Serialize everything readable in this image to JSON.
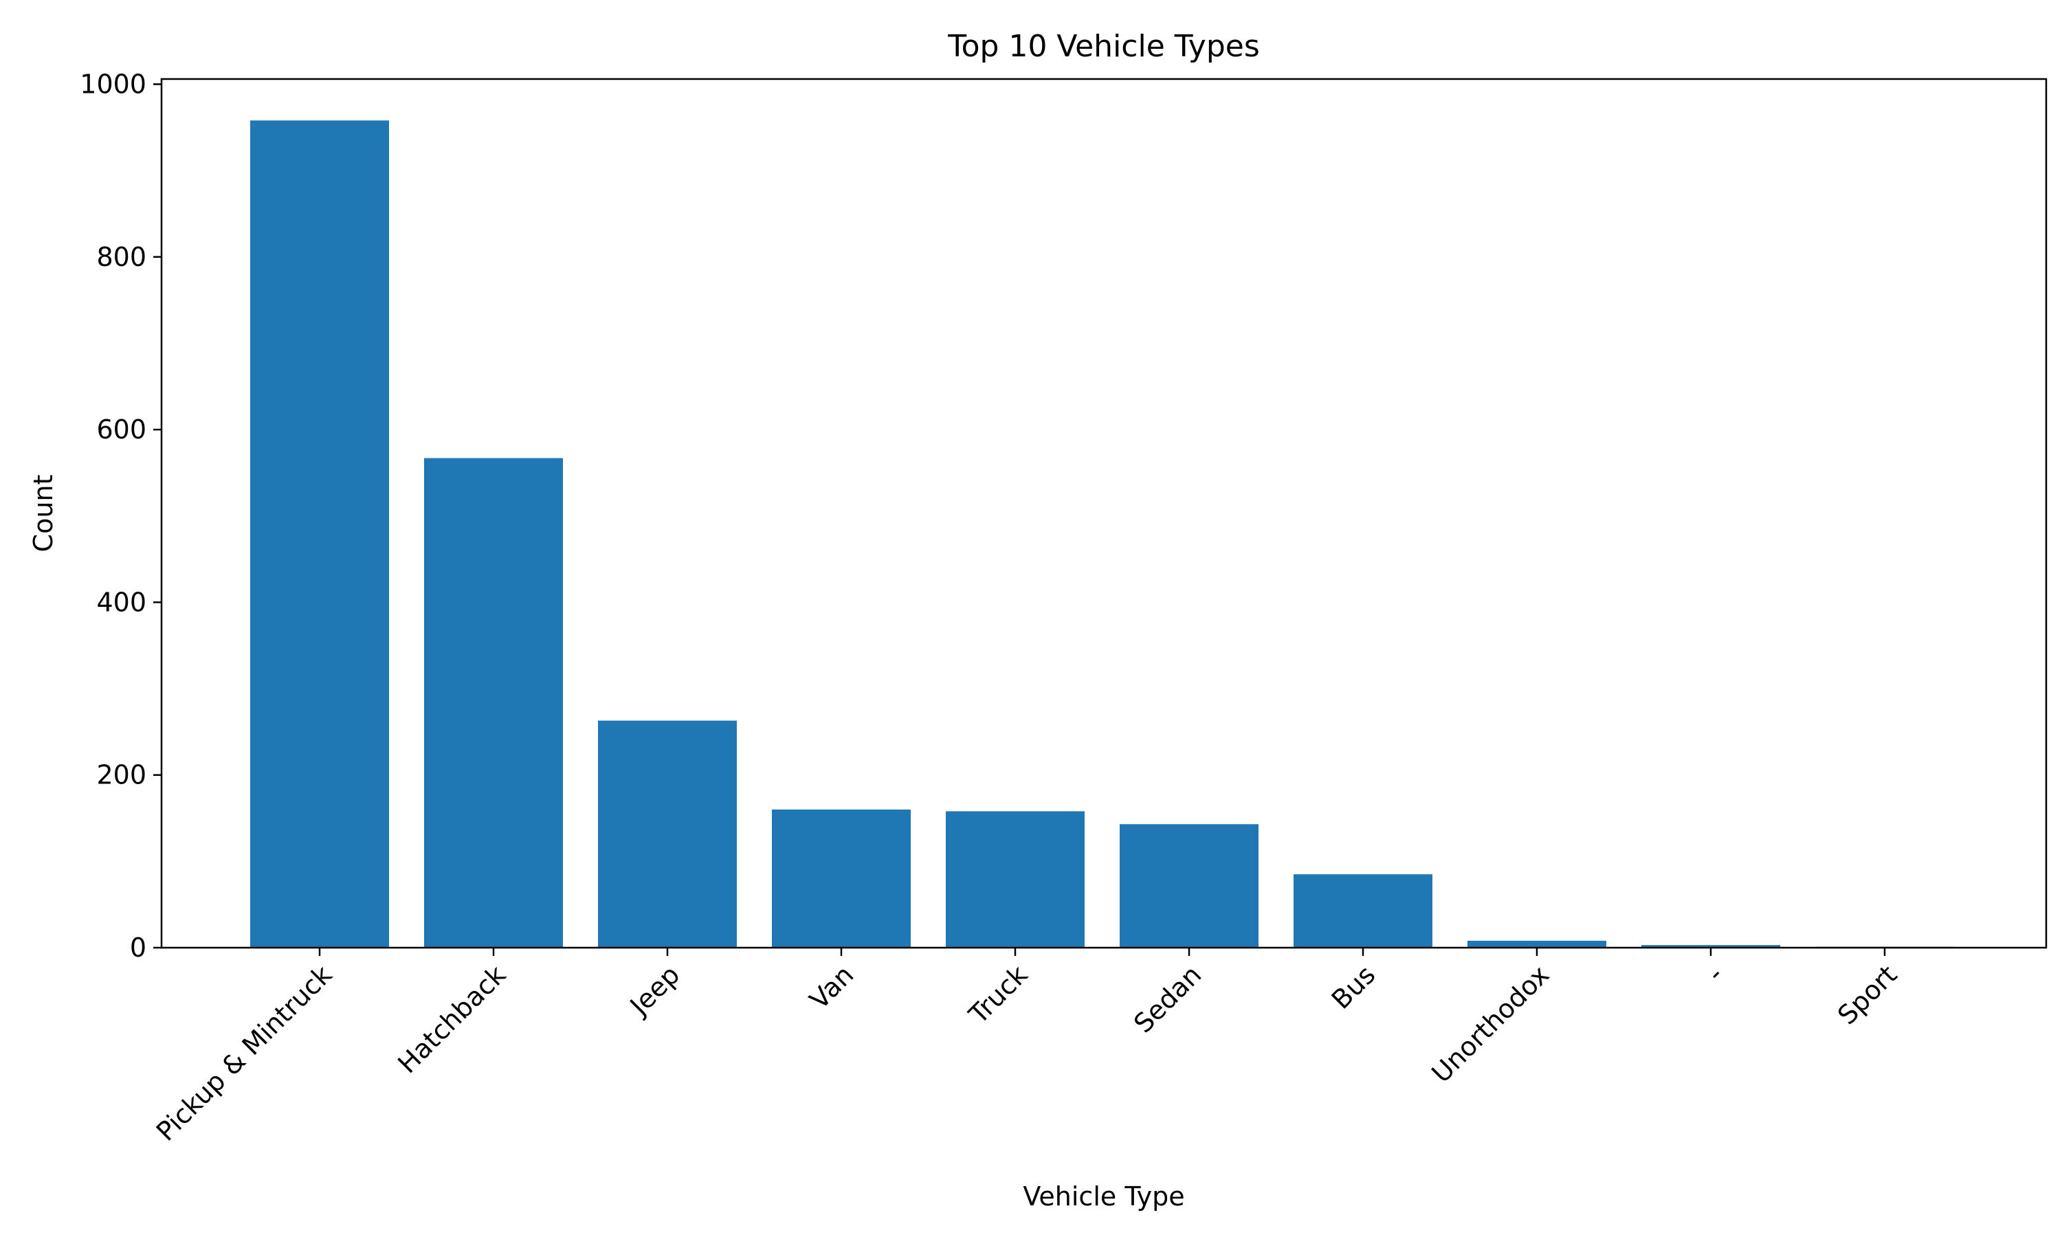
{
  "chart_data": {
    "type": "bar",
    "title": "Top 10 Vehicle Types",
    "xlabel": "Vehicle Type",
    "ylabel": "Count",
    "categories": [
      "Pickup & Mintruck",
      "Hatchback",
      "Jeep",
      "Van",
      "Truck",
      "Sedan",
      "Bus",
      "Unorthodox",
      "-",
      "Sport"
    ],
    "values": [
      958,
      567,
      263,
      160,
      158,
      143,
      85,
      8,
      3,
      1
    ],
    "ylim": [
      0,
      1006
    ],
    "yticks": [
      0,
      200,
      400,
      600,
      800,
      1000
    ],
    "grid": false,
    "legend": "none",
    "bar_color": "#1f77b4"
  }
}
